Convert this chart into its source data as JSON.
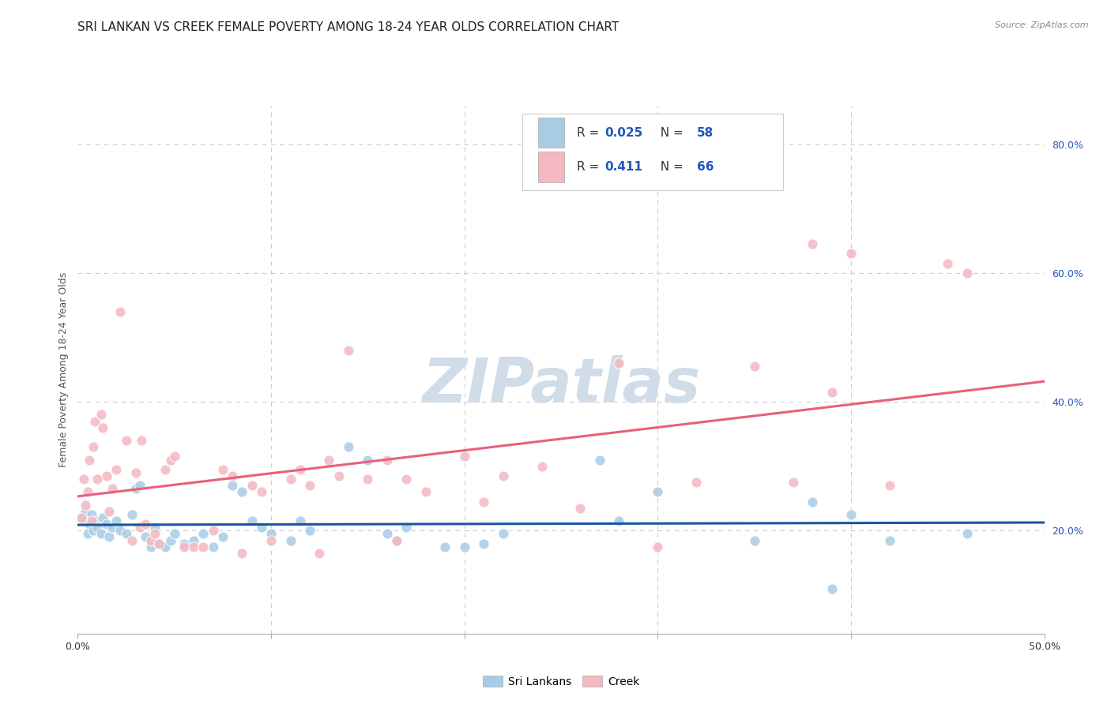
{
  "title": "SRI LANKAN VS CREEK FEMALE POVERTY AMONG 18-24 YEAR OLDS CORRELATION CHART",
  "source": "Source: ZipAtlas.com",
  "ylabel": "Female Poverty Among 18-24 Year Olds",
  "xmin": 0.0,
  "xmax": 0.5,
  "ymin": 0.04,
  "ymax": 0.86,
  "sri_lankan_color": "#a8cce4",
  "creek_color": "#f4b8c1",
  "sl_line_color": "#1a56a0",
  "cr_line_color": "#e8607a",
  "sri_lankan_R": 0.025,
  "sri_lankan_N": 58,
  "creek_R": 0.411,
  "creek_N": 66,
  "sri_lankan_scatter": [
    [
      0.002,
      0.22
    ],
    [
      0.003,
      0.215
    ],
    [
      0.004,
      0.23
    ],
    [
      0.005,
      0.195
    ],
    [
      0.006,
      0.21
    ],
    [
      0.007,
      0.225
    ],
    [
      0.008,
      0.2
    ],
    [
      0.009,
      0.215
    ],
    [
      0.01,
      0.205
    ],
    [
      0.012,
      0.195
    ],
    [
      0.013,
      0.22
    ],
    [
      0.015,
      0.21
    ],
    [
      0.016,
      0.19
    ],
    [
      0.018,
      0.205
    ],
    [
      0.02,
      0.215
    ],
    [
      0.022,
      0.2
    ],
    [
      0.025,
      0.195
    ],
    [
      0.028,
      0.225
    ],
    [
      0.03,
      0.265
    ],
    [
      0.032,
      0.27
    ],
    [
      0.035,
      0.19
    ],
    [
      0.038,
      0.175
    ],
    [
      0.04,
      0.205
    ],
    [
      0.042,
      0.18
    ],
    [
      0.045,
      0.175
    ],
    [
      0.048,
      0.185
    ],
    [
      0.05,
      0.195
    ],
    [
      0.055,
      0.18
    ],
    [
      0.06,
      0.185
    ],
    [
      0.065,
      0.195
    ],
    [
      0.07,
      0.175
    ],
    [
      0.075,
      0.19
    ],
    [
      0.08,
      0.27
    ],
    [
      0.085,
      0.26
    ],
    [
      0.09,
      0.215
    ],
    [
      0.095,
      0.205
    ],
    [
      0.1,
      0.195
    ],
    [
      0.11,
      0.185
    ],
    [
      0.115,
      0.215
    ],
    [
      0.12,
      0.2
    ],
    [
      0.14,
      0.33
    ],
    [
      0.15,
      0.31
    ],
    [
      0.16,
      0.195
    ],
    [
      0.165,
      0.185
    ],
    [
      0.17,
      0.205
    ],
    [
      0.19,
      0.175
    ],
    [
      0.2,
      0.175
    ],
    [
      0.21,
      0.18
    ],
    [
      0.22,
      0.195
    ],
    [
      0.27,
      0.31
    ],
    [
      0.28,
      0.215
    ],
    [
      0.3,
      0.26
    ],
    [
      0.35,
      0.185
    ],
    [
      0.38,
      0.245
    ],
    [
      0.39,
      0.11
    ],
    [
      0.4,
      0.225
    ],
    [
      0.42,
      0.185
    ],
    [
      0.46,
      0.195
    ]
  ],
  "creek_scatter": [
    [
      0.002,
      0.22
    ],
    [
      0.003,
      0.28
    ],
    [
      0.004,
      0.24
    ],
    [
      0.005,
      0.26
    ],
    [
      0.006,
      0.31
    ],
    [
      0.007,
      0.215
    ],
    [
      0.008,
      0.33
    ],
    [
      0.009,
      0.37
    ],
    [
      0.01,
      0.28
    ],
    [
      0.012,
      0.38
    ],
    [
      0.013,
      0.36
    ],
    [
      0.015,
      0.285
    ],
    [
      0.016,
      0.23
    ],
    [
      0.018,
      0.265
    ],
    [
      0.02,
      0.295
    ],
    [
      0.022,
      0.54
    ],
    [
      0.025,
      0.34
    ],
    [
      0.028,
      0.185
    ],
    [
      0.03,
      0.29
    ],
    [
      0.032,
      0.205
    ],
    [
      0.033,
      0.34
    ],
    [
      0.035,
      0.21
    ],
    [
      0.038,
      0.185
    ],
    [
      0.04,
      0.195
    ],
    [
      0.042,
      0.18
    ],
    [
      0.045,
      0.295
    ],
    [
      0.048,
      0.31
    ],
    [
      0.05,
      0.315
    ],
    [
      0.055,
      0.175
    ],
    [
      0.06,
      0.175
    ],
    [
      0.065,
      0.175
    ],
    [
      0.07,
      0.2
    ],
    [
      0.075,
      0.295
    ],
    [
      0.08,
      0.285
    ],
    [
      0.085,
      0.165
    ],
    [
      0.09,
      0.27
    ],
    [
      0.095,
      0.26
    ],
    [
      0.1,
      0.185
    ],
    [
      0.11,
      0.28
    ],
    [
      0.115,
      0.295
    ],
    [
      0.12,
      0.27
    ],
    [
      0.125,
      0.165
    ],
    [
      0.13,
      0.31
    ],
    [
      0.135,
      0.285
    ],
    [
      0.14,
      0.48
    ],
    [
      0.15,
      0.28
    ],
    [
      0.16,
      0.31
    ],
    [
      0.165,
      0.185
    ],
    [
      0.17,
      0.28
    ],
    [
      0.18,
      0.26
    ],
    [
      0.2,
      0.315
    ],
    [
      0.21,
      0.245
    ],
    [
      0.22,
      0.285
    ],
    [
      0.24,
      0.3
    ],
    [
      0.26,
      0.235
    ],
    [
      0.28,
      0.46
    ],
    [
      0.3,
      0.175
    ],
    [
      0.32,
      0.275
    ],
    [
      0.35,
      0.455
    ],
    [
      0.37,
      0.275
    ],
    [
      0.38,
      0.645
    ],
    [
      0.39,
      0.415
    ],
    [
      0.4,
      0.63
    ],
    [
      0.42,
      0.27
    ],
    [
      0.45,
      0.615
    ],
    [
      0.46,
      0.6
    ]
  ],
  "background_color": "#ffffff",
  "grid_color": "#cccccc",
  "watermark_text": "ZIPatlas",
  "watermark_color": "#d0dce8",
  "title_fontsize": 11,
  "label_fontsize": 9,
  "tick_fontsize": 9,
  "legend_text_color_black": "#333333",
  "legend_text_color_blue": "#2255bb"
}
